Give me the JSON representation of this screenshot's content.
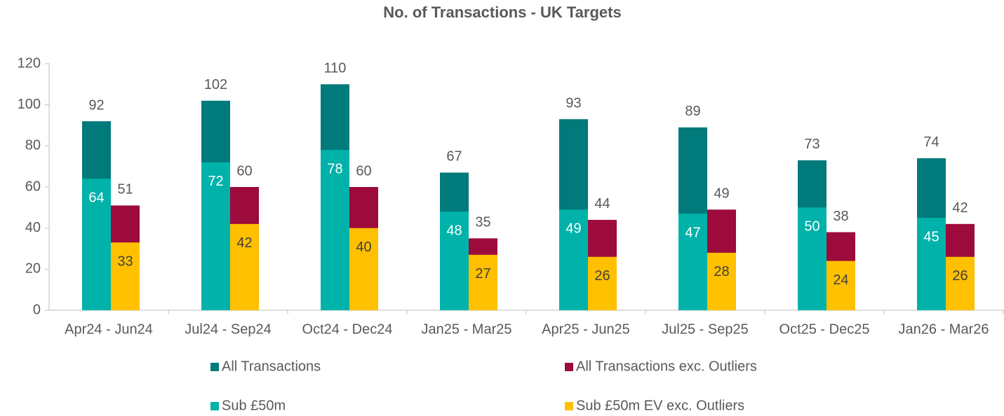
{
  "chart_data": {
    "type": "bar",
    "title": "No. of Transactions - UK Targets",
    "categories": [
      "Apr24 - Jun24",
      "Jul24 - Sep24",
      "Oct24 - Dec24",
      "Jan25 - Mar25",
      "Apr25 - Jun25",
      "Jul25 - Sep25",
      "Oct25 - Dec25",
      "Jan26 - Mar26"
    ],
    "series": [
      {
        "name": "All Transactions",
        "color": "#007a7b",
        "values": [
          92,
          102,
          110,
          67,
          93,
          89,
          73,
          74
        ]
      },
      {
        "name": "All Transactions exc. Outliers",
        "color": "#9c0b3b",
        "values": [
          51,
          60,
          60,
          35,
          44,
          49,
          38,
          42
        ]
      },
      {
        "name": "Sub £50m",
        "color": "#00b2a9",
        "values": [
          64,
          72,
          78,
          48,
          49,
          47,
          50,
          45
        ]
      },
      {
        "name": "Sub £50m EV exc. Outliers",
        "color": "#ffc000",
        "values": [
          33,
          42,
          40,
          27,
          26,
          28,
          24,
          26
        ]
      }
    ],
    "ylim": [
      0,
      120
    ],
    "yticks": [
      0,
      20,
      40,
      60,
      80,
      100,
      120
    ],
    "grid": false,
    "legend": "bottom"
  }
}
